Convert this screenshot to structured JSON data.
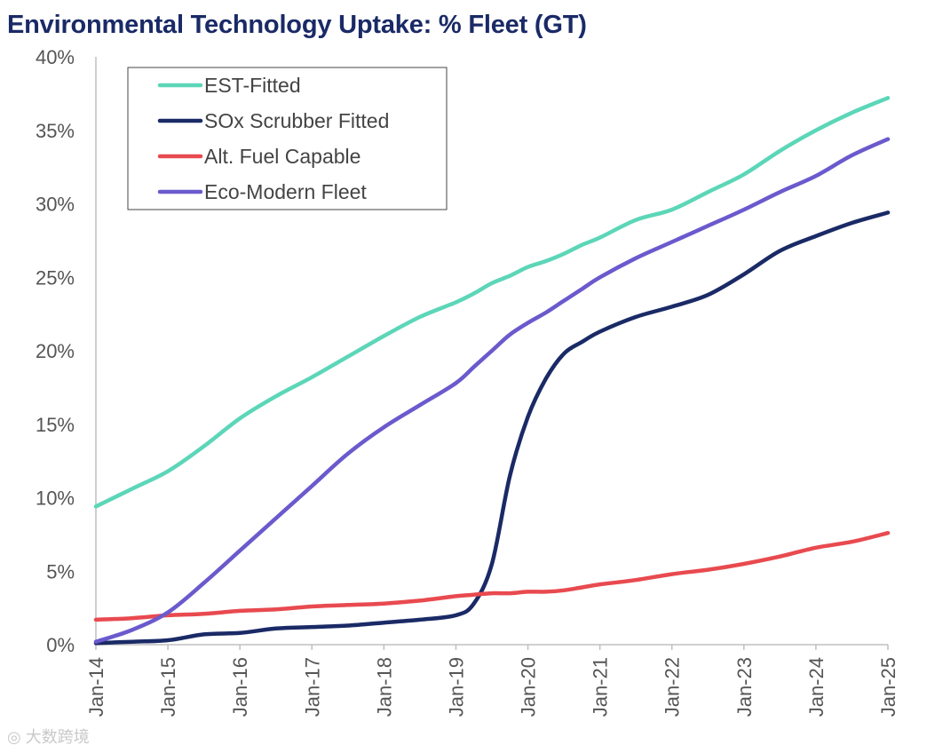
{
  "chart_data": {
    "type": "line",
    "title": "Environmental Technology Uptake: % Fleet (GT)",
    "xlabel": "",
    "ylabel": "",
    "ylim": [
      0,
      40
    ],
    "y_ticks": [
      "0%",
      "5%",
      "10%",
      "15%",
      "20%",
      "25%",
      "30%",
      "35%",
      "40%"
    ],
    "x_ticks": [
      "Jan-14",
      "Jan-15",
      "Jan-16",
      "Jan-17",
      "Jan-18",
      "Jan-19",
      "Jan-20",
      "Jan-21",
      "Jan-22",
      "Jan-23",
      "Jan-24",
      "Jan-25"
    ],
    "x": [
      2014.0,
      2014.5,
      2015.0,
      2015.5,
      2016.0,
      2016.5,
      2017.0,
      2017.5,
      2018.0,
      2018.5,
      2019.0,
      2019.25,
      2019.5,
      2019.75,
      2020.0,
      2020.25,
      2020.5,
      2020.75,
      2021.0,
      2021.5,
      2022.0,
      2022.5,
      2023.0,
      2023.5,
      2024.0,
      2024.5,
      2025.0
    ],
    "series": [
      {
        "name": "EST-Fitted",
        "color": "#5cd6b8",
        "values": [
          9.4,
          10.6,
          11.8,
          13.5,
          15.4,
          16.9,
          18.2,
          19.6,
          21.0,
          22.3,
          23.3,
          23.9,
          24.6,
          25.1,
          25.7,
          26.1,
          26.6,
          27.2,
          27.7,
          28.9,
          29.6,
          30.8,
          32.0,
          33.6,
          35.0,
          36.2,
          37.2
        ]
      },
      {
        "name": "SOx Scrubber Fitted",
        "color": "#1a2a66",
        "values": [
          0.1,
          0.2,
          0.3,
          0.7,
          0.8,
          1.1,
          1.2,
          1.3,
          1.5,
          1.7,
          2.0,
          2.8,
          5.5,
          11.5,
          15.5,
          18.1,
          19.8,
          20.6,
          21.3,
          22.3,
          23.0,
          23.8,
          25.2,
          26.8,
          27.8,
          28.7,
          29.4
        ]
      },
      {
        "name": "Alt. Fuel Capable",
        "color": "#e84a4f",
        "values": [
          1.7,
          1.8,
          2.0,
          2.1,
          2.3,
          2.4,
          2.6,
          2.7,
          2.8,
          3.0,
          3.3,
          3.4,
          3.5,
          3.5,
          3.6,
          3.6,
          3.7,
          3.9,
          4.1,
          4.4,
          4.8,
          5.1,
          5.5,
          6.0,
          6.6,
          7.0,
          7.6
        ]
      },
      {
        "name": "Eco-Modern Fleet",
        "color": "#6a5acd",
        "values": [
          0.2,
          1.0,
          2.2,
          4.2,
          6.4,
          8.6,
          10.8,
          13.0,
          14.8,
          16.3,
          17.8,
          18.9,
          20.0,
          21.1,
          21.9,
          22.6,
          23.4,
          24.2,
          25.0,
          26.3,
          27.4,
          28.5,
          29.6,
          30.8,
          31.9,
          33.3,
          34.4
        ]
      }
    ],
    "legend": "top-left",
    "grid": false
  },
  "watermark": "大数跨境"
}
